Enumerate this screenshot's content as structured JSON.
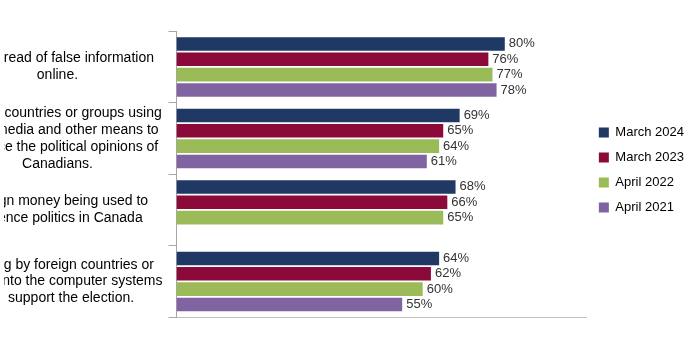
{
  "chart_data": {
    "type": "bar",
    "orientation": "horizontal",
    "categories": [
      "The spread of false information online.",
      "Foreign countries or groups using social media and other means to influence the political opinions of Canadians.",
      "Foreign money being used to influence politics in Canada",
      "Hacking by foreign countries or groups into the computer systems that support the election."
    ],
    "series": [
      {
        "name": "March 2024",
        "color": "#1f3864",
        "values": [
          80,
          69,
          68,
          64
        ],
        "value_labels": [
          "80%",
          "69%",
          "68%",
          "64%"
        ]
      },
      {
        "name": "March 2023",
        "color": "#8b0a3a",
        "values": [
          76,
          65,
          66,
          62
        ],
        "value_labels": [
          "76%",
          "65%",
          "66%",
          "62%"
        ]
      },
      {
        "name": "April 2022",
        "color": "#9bbb59",
        "values": [
          77,
          64,
          65,
          60
        ],
        "value_labels": [
          "77%",
          "64%",
          "65%",
          "60%"
        ]
      },
      {
        "name": "April 2021",
        "color": "#8064a2",
        "values": [
          78,
          61,
          null,
          55
        ],
        "value_labels": [
          "78%",
          "61%",
          null,
          "55%"
        ]
      }
    ],
    "xlim": [
      0,
      100
    ],
    "grid": false,
    "legend": "right",
    "data_labels": true,
    "tick_labels": "y"
  }
}
